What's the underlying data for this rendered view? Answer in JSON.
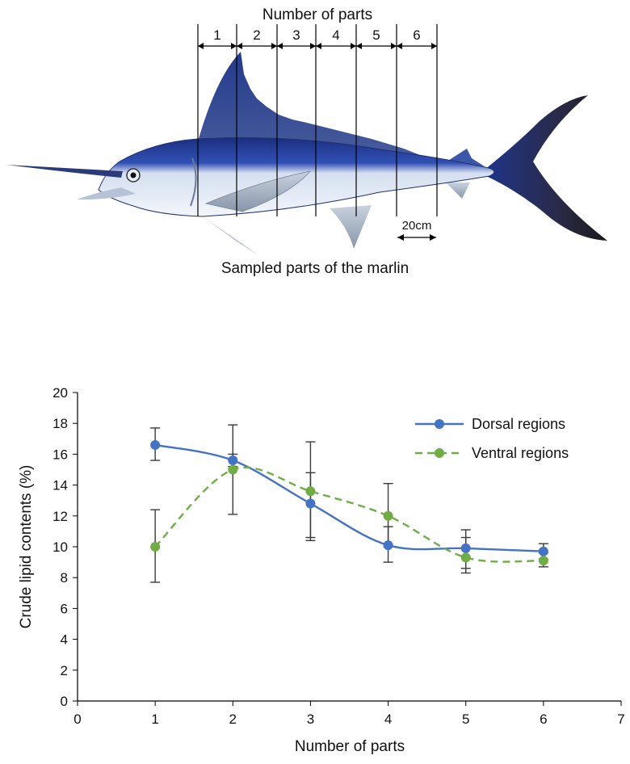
{
  "colors": {
    "dorsal": "#4472C4",
    "ventral": "#70AD47",
    "error_bar": "#3a3a3a",
    "axis": "#000000"
  },
  "illustration": {
    "parts_title": "Number  of parts",
    "part_labels": [
      "1",
      "2",
      "3",
      "4",
      "5",
      "6"
    ],
    "scale_label": "20cm",
    "caption": "Sampled  parts  of the marlin"
  },
  "chart_data": {
    "type": "line",
    "xlabel": "Number  of parts",
    "ylabel": "Crude lipid contents (%)",
    "xlim": [
      0,
      7
    ],
    "ylim": [
      0,
      20
    ],
    "x_ticks": [
      0,
      1,
      2,
      3,
      4,
      5,
      6,
      7
    ],
    "y_ticks": [
      0,
      2,
      4,
      6,
      8,
      10,
      12,
      14,
      16,
      18,
      20
    ],
    "grid": false,
    "legend_position": "top-right",
    "series": [
      {
        "name": "Dorsal regions",
        "style": "solid",
        "smooth": true,
        "x": [
          1,
          2,
          3,
          4,
          5,
          6
        ],
        "y": [
          16.6,
          15.6,
          12.8,
          10.1,
          9.9,
          9.7
        ],
        "err_low": [
          15.6,
          15.2,
          10.6,
          9.0,
          8.6,
          9.2
        ],
        "err_high": [
          17.7,
          16.0,
          14.8,
          11.3,
          10.6,
          10.2
        ]
      },
      {
        "name": "Ventral regions",
        "style": "dashed",
        "smooth": true,
        "x": [
          1,
          2,
          3,
          4,
          5,
          6
        ],
        "y": [
          10.0,
          15.0,
          13.6,
          12.0,
          9.3,
          9.1
        ],
        "err_low": [
          7.7,
          12.1,
          10.4,
          10.0,
          8.3,
          8.7
        ],
        "err_high": [
          12.4,
          17.9,
          16.8,
          14.1,
          11.1,
          9.6
        ]
      }
    ]
  }
}
